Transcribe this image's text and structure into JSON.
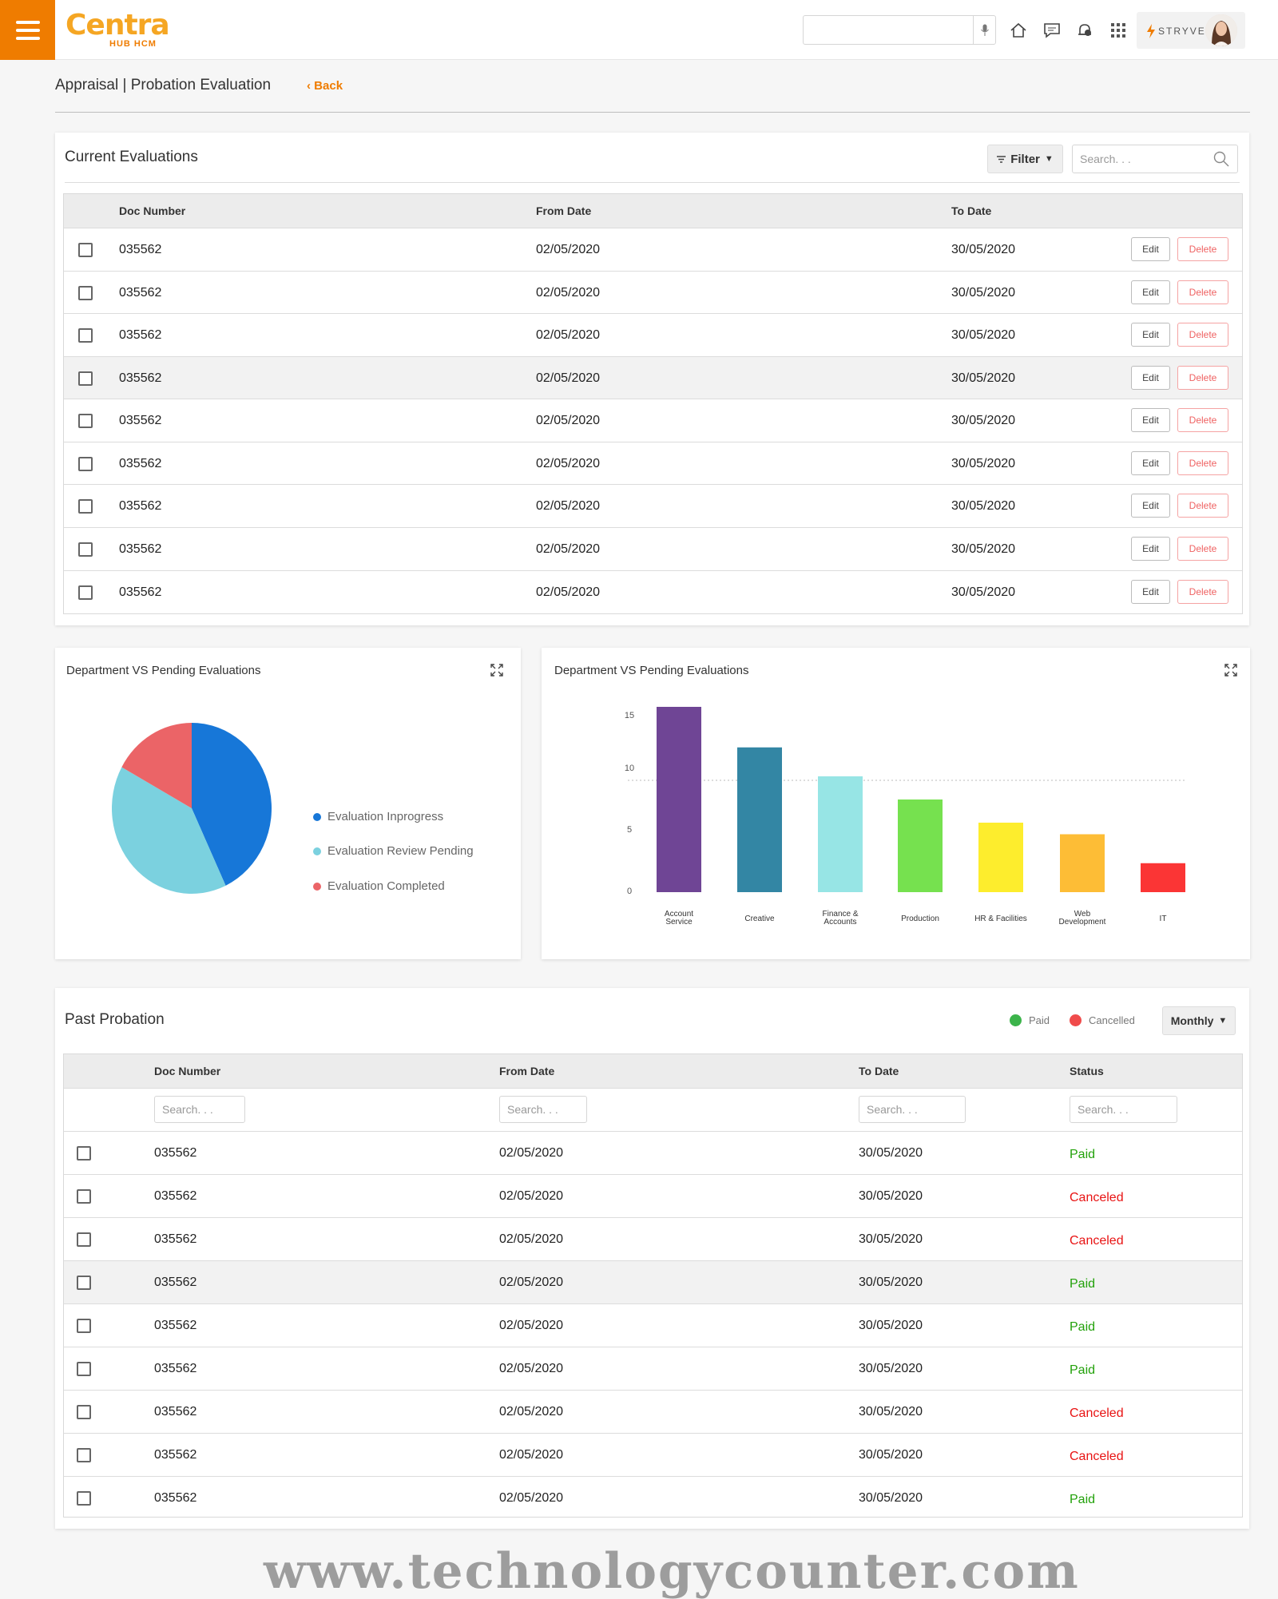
{
  "header": {
    "logo_main": "Centra",
    "logo_sub": "HUB HCM",
    "search_placeholder": "",
    "profile_brand": "STRYVE"
  },
  "breadcrumb": {
    "title": "Appraisal | Probation Evaluation",
    "back": "Back"
  },
  "current": {
    "title": "Current Evaluations",
    "filter_label": "Filter",
    "search_placeholder": "Search. . .",
    "columns": [
      "Doc Number",
      "From Date",
      "To Date"
    ],
    "edit_label": "Edit",
    "delete_label": "Delete",
    "rows": [
      {
        "doc": "035562",
        "from": "02/05/2020",
        "to": "30/05/2020"
      },
      {
        "doc": "035562",
        "from": "02/05/2020",
        "to": "30/05/2020"
      },
      {
        "doc": "035562",
        "from": "02/05/2020",
        "to": "30/05/2020"
      },
      {
        "doc": "035562",
        "from": "02/05/2020",
        "to": "30/05/2020"
      },
      {
        "doc": "035562",
        "from": "02/05/2020",
        "to": "30/05/2020"
      },
      {
        "doc": "035562",
        "from": "02/05/2020",
        "to": "30/05/2020"
      },
      {
        "doc": "035562",
        "from": "02/05/2020",
        "to": "30/05/2020"
      },
      {
        "doc": "035562",
        "from": "02/05/2020",
        "to": "30/05/2020"
      },
      {
        "doc": "035562",
        "from": "02/05/2020",
        "to": "30/05/2020"
      }
    ]
  },
  "pie_card": {
    "title": "Department VS Pending Evaluations"
  },
  "bar_card": {
    "title": "Department VS Pending Evaluations"
  },
  "chart_data": [
    {
      "type": "pie",
      "title": "Department VS Pending Evaluations",
      "series": [
        {
          "name": "Evaluation Inprogress",
          "value": 43,
          "color": "#1777d8"
        },
        {
          "name": "Evaluation Review Pending",
          "value": 40,
          "color": "#7bd1df"
        },
        {
          "name": "Evaluation Completed",
          "value": 17,
          "color": "#eb6467"
        }
      ],
      "legend": "right"
    },
    {
      "type": "bar",
      "title": "Department VS Pending Evaluations",
      "categories": [
        "Account\nService",
        "Creative",
        "Finance &\nAccounts",
        "Production",
        "HR & Facilities",
        "Web\nDevelopment",
        "IT"
      ],
      "values": [
        16,
        12.5,
        10,
        8,
        6,
        5,
        2.5
      ],
      "colors": [
        "#6f4595",
        "#3386a4",
        "#97e5e5",
        "#76e14f",
        "#fded2d",
        "#fdbd36",
        "#fb3535"
      ],
      "yticks": [
        "15",
        "10",
        "5",
        "0"
      ],
      "ylim": [
        0,
        16
      ],
      "reference_line": 10
    }
  ],
  "past": {
    "title": "Past Probation",
    "legend_paid": "Paid",
    "legend_cancelled": "Cancelled",
    "paid_color": "#3cb44b",
    "cancelled_color": "#f04b4b",
    "period": "Monthly",
    "columns": [
      "Doc Number",
      "From Date",
      "To Date",
      "Status"
    ],
    "search_placeholder": "Search. . .",
    "rows": [
      {
        "doc": "035562",
        "from": "02/05/2020",
        "to": "30/05/2020",
        "status": "Paid"
      },
      {
        "doc": "035562",
        "from": "02/05/2020",
        "to": "30/05/2020",
        "status": "Canceled"
      },
      {
        "doc": "035562",
        "from": "02/05/2020",
        "to": "30/05/2020",
        "status": "Canceled"
      },
      {
        "doc": "035562",
        "from": "02/05/2020",
        "to": "30/05/2020",
        "status": "Paid"
      },
      {
        "doc": "035562",
        "from": "02/05/2020",
        "to": "30/05/2020",
        "status": "Paid"
      },
      {
        "doc": "035562",
        "from": "02/05/2020",
        "to": "30/05/2020",
        "status": "Paid"
      },
      {
        "doc": "035562",
        "from": "02/05/2020",
        "to": "30/05/2020",
        "status": "Canceled"
      },
      {
        "doc": "035562",
        "from": "02/05/2020",
        "to": "30/05/2020",
        "status": "Canceled"
      },
      {
        "doc": "035562",
        "from": "02/05/2020",
        "to": "30/05/2020",
        "status": "Paid"
      }
    ]
  },
  "watermark": "www.technologycounter.com"
}
